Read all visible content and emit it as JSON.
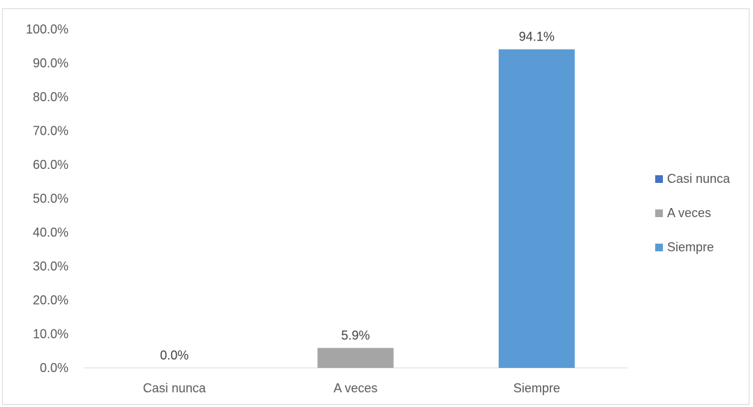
{
  "chart_data": {
    "type": "bar",
    "categories": [
      "Casi nunca",
      "A veces",
      "Siempre"
    ],
    "values": [
      0.0,
      5.9,
      94.1
    ],
    "data_labels": [
      "0.0%",
      "5.9%",
      "94.1%"
    ],
    "ylim": [
      0,
      100
    ],
    "yticks": [
      "0.0%",
      "10.0%",
      "20.0%",
      "30.0%",
      "40.0%",
      "50.0%",
      "60.0%",
      "70.0%",
      "80.0%",
      "90.0%",
      "100.0%"
    ],
    "colors": [
      "#4472c4",
      "#a5a5a5",
      "#5b9bd5"
    ],
    "grid": false,
    "legend_position": "right",
    "legend": [
      {
        "label": "Casi nunca",
        "color": "#4472c4"
      },
      {
        "label": "A veces",
        "color": "#a5a5a5"
      },
      {
        "label": "Siempre",
        "color": "#5b9bd5"
      }
    ]
  }
}
